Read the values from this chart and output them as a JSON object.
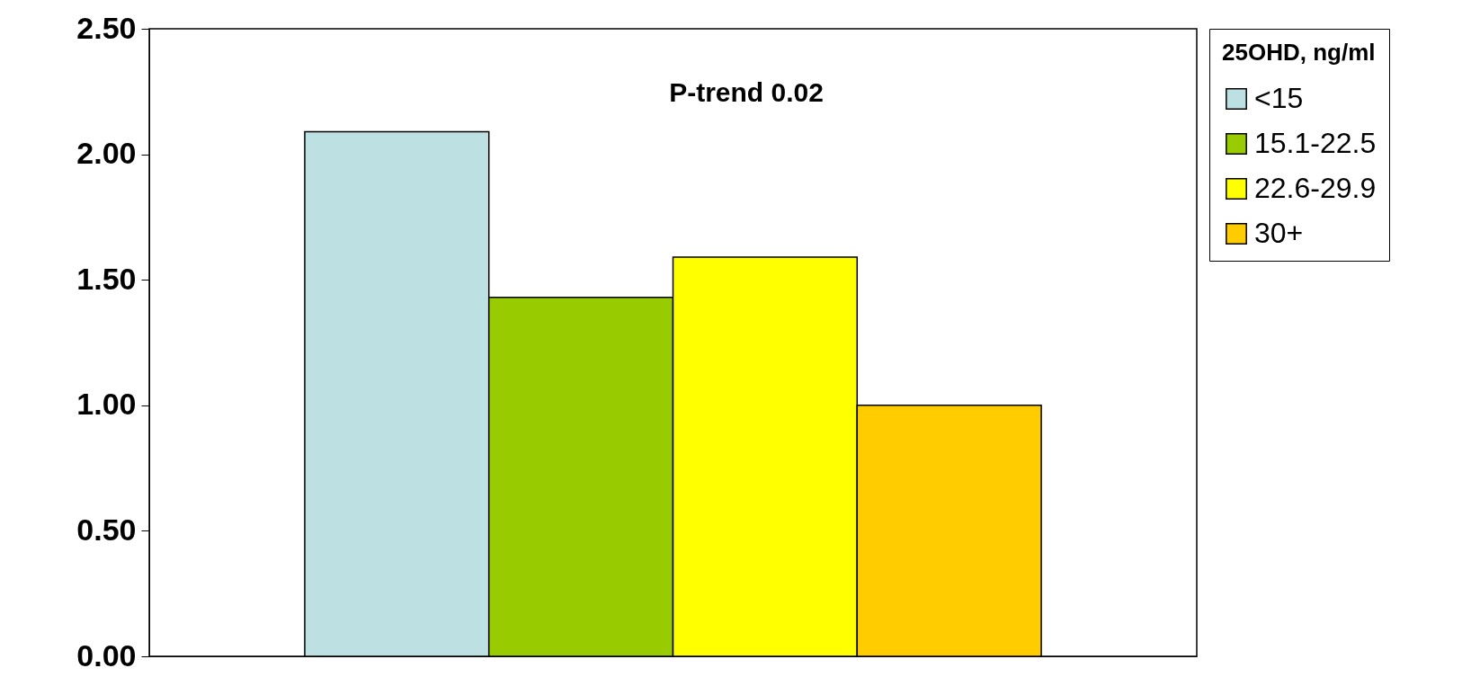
{
  "chart_data": {
    "type": "bar",
    "categories": [
      null
    ],
    "series": [
      {
        "name": "<15",
        "color": "#bde1e3",
        "values": [
          2.09
        ]
      },
      {
        "name": "15.1-22.5",
        "color": "#99cc00",
        "values": [
          1.43
        ]
      },
      {
        "name": "22.6-29.9",
        "color": "#ffff00",
        "values": [
          1.59
        ]
      },
      {
        "name": "30+",
        "color": "#ffcc00",
        "values": [
          1.0
        ]
      }
    ],
    "ylim": [
      0,
      2.5
    ],
    "yticks": [
      {
        "value": 0,
        "label": "0.00"
      },
      {
        "value": 0.5,
        "label": "0.50"
      },
      {
        "value": 1,
        "label": "1.00"
      },
      {
        "value": 1.5,
        "label": "1.50"
      },
      {
        "value": 2,
        "label": "2.00"
      },
      {
        "value": 2.5,
        "label": "2.50"
      }
    ],
    "legend_title": "25OHD, ng/ml",
    "legend": "right",
    "grid": false,
    "annotations": [
      "P-trend 0.02"
    ]
  }
}
